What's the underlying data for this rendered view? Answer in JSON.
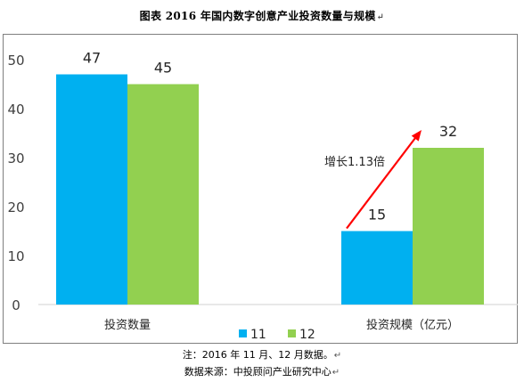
{
  "doc": {
    "title": "图表 2016 年国内数字创意产业投资数量与规模",
    "note": "注：2016 年 11 月、12 月数据。",
    "source": "数据来源：中投顾问产业研究中心"
  },
  "chart_data": {
    "type": "bar",
    "categories": [
      "投资数量",
      "投资规模（亿元）"
    ],
    "series": [
      {
        "name": "11",
        "values": [
          47,
          15
        ]
      },
      {
        "name": "12",
        "values": [
          45,
          32
        ]
      }
    ],
    "ylim": [
      0,
      50
    ],
    "yticks": [
      "0",
      "10",
      "20",
      "30",
      "40",
      "50"
    ],
    "grid": false,
    "legend": "bottom",
    "annotation": "增长1.13倍",
    "colors": {
      "11": "#00b0f0",
      "12": "#92d050",
      "arrow": "#ff0000"
    }
  }
}
